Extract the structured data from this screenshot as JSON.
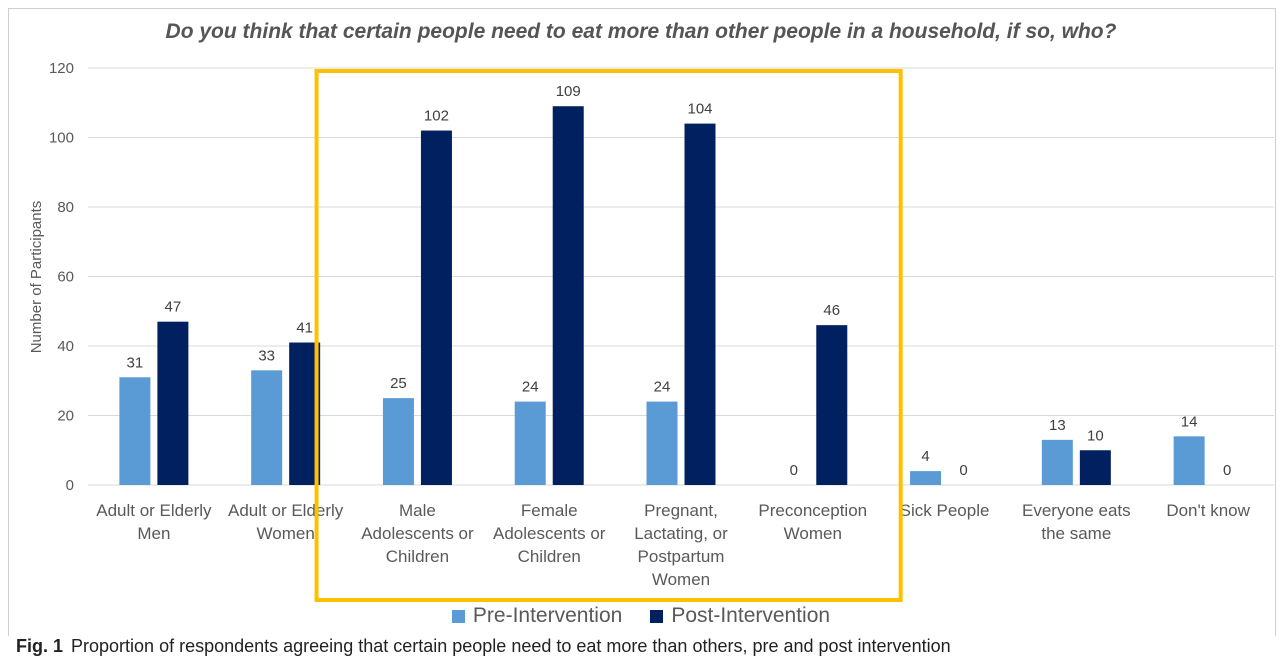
{
  "colors": {
    "pre": "#5b9bd5",
    "post": "#002060",
    "highlight_box": "#ffc000",
    "grid": "#d9d9d9",
    "text": "#595959"
  },
  "caption": {
    "label": "Fig. 1",
    "text": "Proportion of respondents agreeing that certain people need to eat more than others, pre and post intervention"
  },
  "chart_data": {
    "type": "bar",
    "title": "Do you think that certain people need to eat more than other people in a household, if so, who?",
    "xlabel": "",
    "ylabel": "Number of Participants",
    "ylim": [
      0,
      120
    ],
    "yticks": [
      0,
      20,
      40,
      60,
      80,
      100,
      120
    ],
    "grid": true,
    "legend_position": "bottom",
    "categories": [
      [
        "Adult or Elderly",
        "Men"
      ],
      [
        "Adult or Elderly",
        "Women"
      ],
      [
        "Male",
        "Adolescents or",
        "Children"
      ],
      [
        "Female",
        "Adolescents or",
        "Children"
      ],
      [
        "Pregnant,",
        "Lactating, or",
        "Postpartum",
        "Women"
      ],
      [
        "Preconception",
        "Women"
      ],
      [
        "Sick People"
      ],
      [
        "Everyone eats",
        "the same"
      ],
      [
        "Don't know"
      ]
    ],
    "series": [
      {
        "name": "Pre-Intervention",
        "values": [
          31,
          33,
          25,
          24,
          24,
          0,
          4,
          13,
          14
        ]
      },
      {
        "name": "Post-Intervention",
        "values": [
          47,
          41,
          102,
          109,
          104,
          46,
          0,
          10,
          0
        ]
      }
    ],
    "highlight_categories": [
      2,
      5
    ]
  }
}
